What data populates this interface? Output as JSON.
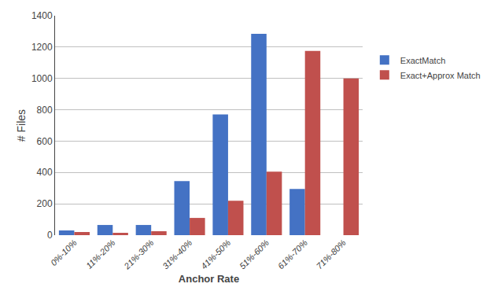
{
  "chart_data": {
    "type": "bar",
    "categories": [
      "0%-10%",
      "11%-20%",
      "21%-30%",
      "31%-40%",
      "41%-50%",
      "51%-60%",
      "61%-70%",
      "71%-80%"
    ],
    "series": [
      {
        "name": "ExactMatch",
        "color": "#4472C4",
        "values": [
          30,
          65,
          65,
          345,
          770,
          1285,
          295,
          0
        ]
      },
      {
        "name": "Exact+Approx Match",
        "color": "#C0504D",
        "values": [
          20,
          15,
          25,
          110,
          220,
          405,
          1175,
          1000
        ]
      }
    ],
    "xlabel": "Anchor Rate",
    "ylabel": "# Files",
    "ylim": [
      0,
      1400
    ],
    "yticks": [
      0,
      200,
      400,
      600,
      800,
      1000,
      1200,
      1400
    ],
    "grid": true,
    "legend": "right"
  }
}
